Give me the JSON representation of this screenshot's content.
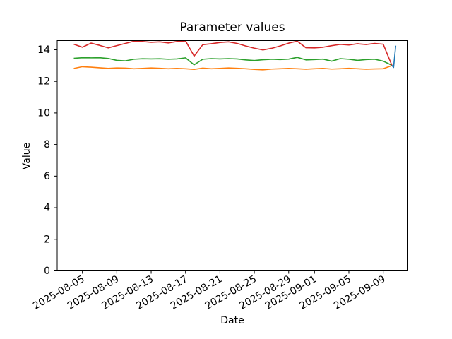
{
  "chart_data": {
    "type": "line",
    "title": "Parameter values",
    "xlabel": "Date",
    "ylabel": "Value",
    "grid": false,
    "legend": "none",
    "x_start_date": "2025-08-04",
    "x_end_date": "2025-09-10",
    "x_cadence": "daily",
    "x_range_days": [
      -1.93,
      38.78
    ],
    "y_range": [
      0,
      14.58
    ],
    "y_ticks": [
      0,
      2,
      4,
      6,
      8,
      10,
      12,
      14
    ],
    "x_ticks": [
      {
        "day": 1,
        "label": "2025-08-05"
      },
      {
        "day": 5,
        "label": "2025-08-09"
      },
      {
        "day": 9,
        "label": "2025-08-13"
      },
      {
        "day": 13,
        "label": "2025-08-17"
      },
      {
        "day": 17,
        "label": "2025-08-21"
      },
      {
        "day": 21,
        "label": "2025-08-25"
      },
      {
        "day": 25,
        "label": "2025-08-29"
      },
      {
        "day": 28,
        "label": "2025-09-01"
      },
      {
        "day": 32,
        "label": "2025-09-05"
      },
      {
        "day": 36,
        "label": "2025-09-09"
      }
    ],
    "series": [
      {
        "name": "orange-series",
        "color": "#ff7f0e",
        "values": [
          12.82,
          12.93,
          12.9,
          12.86,
          12.82,
          12.85,
          12.84,
          12.8,
          12.82,
          12.85,
          12.83,
          12.8,
          12.82,
          12.8,
          12.76,
          12.84,
          12.8,
          12.82,
          12.85,
          12.83,
          12.8,
          12.76,
          12.73,
          12.78,
          12.8,
          12.82,
          12.8,
          12.77,
          12.8,
          12.82,
          12.78,
          12.8,
          12.83,
          12.8,
          12.77,
          12.79,
          12.8,
          13.0
        ]
      },
      {
        "name": "green-series",
        "color": "#2ca02c",
        "values": [
          13.46,
          13.5,
          13.49,
          13.5,
          13.45,
          13.33,
          13.3,
          13.4,
          13.43,
          13.42,
          13.43,
          13.4,
          13.42,
          13.49,
          13.05,
          13.4,
          13.44,
          13.42,
          13.44,
          13.42,
          13.36,
          13.32,
          13.37,
          13.4,
          13.38,
          13.41,
          13.52,
          13.36,
          13.38,
          13.41,
          13.28,
          13.44,
          13.4,
          13.33,
          13.38,
          13.4,
          13.28,
          13.02
        ]
      },
      {
        "name": "red-series",
        "color": "#d62728",
        "values": [
          14.35,
          14.16,
          14.42,
          14.28,
          14.12,
          14.26,
          14.4,
          14.54,
          14.52,
          14.47,
          14.5,
          14.43,
          14.52,
          14.56,
          13.6,
          14.32,
          14.38,
          14.46,
          14.5,
          14.4,
          14.24,
          14.1,
          13.99,
          14.09,
          14.24,
          14.42,
          14.54,
          14.13,
          14.12,
          14.16,
          14.26,
          14.34,
          14.3,
          14.38,
          14.33,
          14.4,
          14.35,
          13.02
        ]
      },
      {
        "name": "blue-series",
        "color": "#1f77b4",
        "x_days": [
          37.0,
          37.2,
          37.45
        ],
        "values": [
          13.02,
          12.88,
          14.26
        ]
      }
    ]
  }
}
